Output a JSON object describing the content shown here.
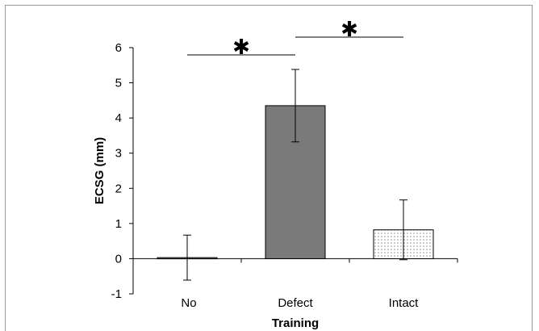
{
  "chart_data": {
    "type": "bar",
    "categories": [
      "No",
      "Defect",
      "Intact"
    ],
    "values": [
      0.03,
      4.35,
      0.82
    ],
    "errors": [
      0.64,
      1.03,
      0.85
    ],
    "xlabel": "Training",
    "ylabel": "ECSG (mm)",
    "ylim": [
      -1,
      6
    ],
    "yticks": [
      "-1",
      "0",
      "1",
      "2",
      "3",
      "4",
      "5",
      "6"
    ],
    "grid": false,
    "legend": "none",
    "bar_fills": [
      "#7a7a7a",
      "#7a7a7a",
      "dotted"
    ],
    "significance": [
      {
        "from": "No",
        "to": "Defect",
        "marker": "✱"
      },
      {
        "from": "Defect",
        "to": "Intact",
        "marker": "✱"
      }
    ]
  },
  "colors": {
    "bar_dark": "#7a7a7a",
    "bar_stroke": "#000000",
    "frame": "#9a9a9a"
  }
}
